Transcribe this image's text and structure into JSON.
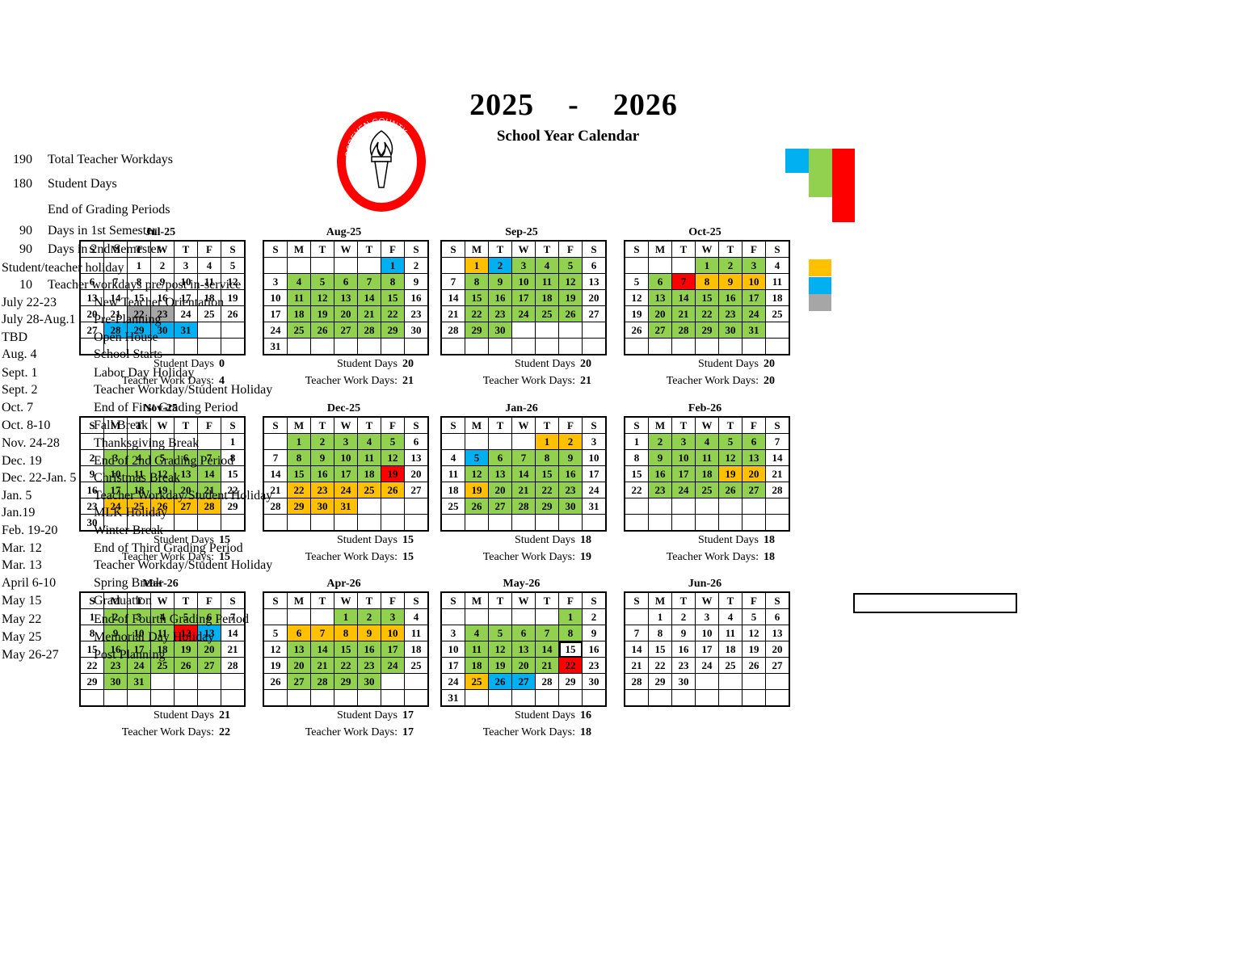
{
  "header": {
    "year_left": "2025",
    "year_dash": "-",
    "year_right": "2026",
    "subtitle": "School Year Calendar"
  },
  "logo": {
    "text_top": "SCREVEN COUNTY",
    "text_bottom": "SCHOOL SYSTEM",
    "ring_color": "#ff0000"
  },
  "colors": {
    "green": "#92d050",
    "blue": "#00b0f0",
    "orange": "#ffc000",
    "red": "#ff0000",
    "gray": "#a6a6a6"
  },
  "day_headers": [
    "S",
    "M",
    "T",
    "W",
    "T",
    "F",
    "S"
  ],
  "stat_labels": {
    "student": "Student Days",
    "teacher": "Teacher Work Days:"
  },
  "months": [
    {
      "title": "Jul-25",
      "start": 2,
      "days": 31,
      "student_days": "0",
      "teacher_days": "4",
      "marks": {
        "22": "gray",
        "23": "gray",
        "28": "blue",
        "29": "blue",
        "30": "blue",
        "31": "blue"
      }
    },
    {
      "title": "Aug-25",
      "start": 5,
      "days": 31,
      "student_days": "20",
      "teacher_days": "21",
      "marks": {
        "1": "blue",
        "4": "green",
        "5": "green",
        "6": "green",
        "7": "green",
        "8": "green",
        "11": "green",
        "12": "green",
        "13": "green",
        "14": "green",
        "15": "green",
        "18": "green",
        "19": "green",
        "20": "green",
        "21": "green",
        "22": "green",
        "25": "green",
        "26": "green",
        "27": "green",
        "28": "green",
        "29": "green"
      }
    },
    {
      "title": "Sep-25",
      "start": 1,
      "days": 30,
      "student_days": "20",
      "teacher_days": "21",
      "marks": {
        "1": "orange",
        "2": "blue",
        "3": "green",
        "4": "green",
        "5": "green",
        "8": "green",
        "9": "green",
        "10": "green",
        "11": "green",
        "12": "green",
        "15": "green",
        "16": "green",
        "17": "green",
        "18": "green",
        "19": "green",
        "22": "green",
        "23": "green",
        "24": "green",
        "25": "green",
        "26": "green",
        "29": "green",
        "30": "green"
      }
    },
    {
      "title": "Oct-25",
      "start": 3,
      "days": 31,
      "student_days": "20",
      "teacher_days": "20",
      "marks": {
        "1": "green",
        "2": "green",
        "3": "green",
        "6": "green",
        "7": "red",
        "8": "orange",
        "9": "orange",
        "10": "orange",
        "13": "green",
        "14": "green",
        "15": "green",
        "16": "green",
        "17": "green",
        "20": "green",
        "21": "green",
        "22": "green",
        "23": "green",
        "24": "green",
        "27": "green",
        "28": "green",
        "29": "green",
        "30": "green",
        "31": "green"
      }
    },
    {
      "title": "Nov-25",
      "start": 6,
      "days": 30,
      "student_days": "15",
      "teacher_days": "15",
      "marks": {
        "3": "green",
        "4": "green",
        "5": "green",
        "6": "green",
        "7": "green",
        "10": "green",
        "11": "green",
        "12": "green",
        "13": "green",
        "14": "green",
        "17": "green",
        "18": "green",
        "19": "green",
        "20": "green",
        "21": "green",
        "24": "orange",
        "25": "orange",
        "26": "orange",
        "27": "orange",
        "28": "orange"
      }
    },
    {
      "title": "Dec-25",
      "start": 1,
      "days": 31,
      "student_days": "15",
      "teacher_days": "15",
      "marks": {
        "1": "green",
        "2": "green",
        "3": "green",
        "4": "green",
        "5": "green",
        "8": "green",
        "9": "green",
        "10": "green",
        "11": "green",
        "12": "green",
        "15": "green",
        "16": "green",
        "17": "green",
        "18": "green",
        "19": "red",
        "22": "orange",
        "23": "orange",
        "24": "orange",
        "25": "orange",
        "26": "orange",
        "29": "orange",
        "30": "orange",
        "31": "orange"
      }
    },
    {
      "title": "Jan-26",
      "start": 4,
      "days": 31,
      "student_days": "18",
      "teacher_days": "19",
      "marks": {
        "1": "orange",
        "2": "orange",
        "5": "blue",
        "6": "green",
        "7": "green",
        "8": "green",
        "9": "green",
        "12": "green",
        "13": "green",
        "14": "green",
        "15": "green",
        "16": "green",
        "19": "orange",
        "20": "green",
        "21": "green",
        "22": "green",
        "23": "green",
        "26": "green",
        "27": "green",
        "28": "green",
        "29": "green",
        "30": "green"
      }
    },
    {
      "title": "Feb-26",
      "start": 0,
      "days": 28,
      "student_days": "18",
      "teacher_days": "18",
      "marks": {
        "2": "green",
        "3": "green",
        "4": "green",
        "5": "green",
        "6": "green",
        "9": "green",
        "10": "green",
        "11": "green",
        "12": "green",
        "13": "green",
        "16": "green",
        "17": "green",
        "18": "green",
        "19": "orange",
        "20": "orange",
        "23": "green",
        "24": "green",
        "25": "green",
        "26": "green",
        "27": "green"
      }
    },
    {
      "title": "Mar-26",
      "start": 0,
      "days": 31,
      "student_days": "21",
      "teacher_days": "22",
      "marks": {
        "2": "green",
        "3": "green",
        "4": "green",
        "5": "green",
        "6": "green",
        "9": "green",
        "10": "green",
        "11": "green",
        "12": "red",
        "13": "blue",
        "16": "green",
        "17": "green",
        "18": "green",
        "19": "green",
        "20": "green",
        "23": "green",
        "24": "green",
        "25": "green",
        "26": "green",
        "27": "green",
        "30": "green",
        "31": "green"
      }
    },
    {
      "title": "Apr-26",
      "start": 3,
      "days": 30,
      "student_days": "17",
      "teacher_days": "17",
      "marks": {
        "1": "green",
        "2": "green",
        "3": "green",
        "6": "orange",
        "7": "orange",
        "8": "orange",
        "9": "orange",
        "10": "orange",
        "13": "green",
        "14": "green",
        "15": "green",
        "16": "green",
        "17": "green",
        "20": "green",
        "21": "green",
        "22": "green",
        "23": "green",
        "24": "green",
        "27": "green",
        "28": "green",
        "29": "green",
        "30": "green"
      }
    },
    {
      "title": "May-26",
      "start": 5,
      "days": 31,
      "student_days": "16",
      "teacher_days": "18",
      "marks": {
        "1": "green",
        "4": "green",
        "5": "green",
        "6": "green",
        "7": "green",
        "8": "green",
        "11": "green",
        "12": "green",
        "13": "green",
        "14": "green",
        "15": "boxed",
        "18": "green",
        "19": "green",
        "20": "green",
        "21": "green",
        "22": "red",
        "25": "orange",
        "26": "blue",
        "27": "blue"
      }
    },
    {
      "title": "Jun-26",
      "start": 1,
      "days": 30,
      "student_days": "",
      "teacher_days": "",
      "marks": {}
    }
  ],
  "legend_stats": [
    {
      "num": "190",
      "label": "Total Teacher Workdays"
    },
    {
      "num": "180",
      "label": "Student Days"
    },
    {
      "num": "",
      "label": "End of Grading Periods"
    },
    {
      "num": "90",
      "label": "Days in 1st Semester"
    },
    {
      "num": "90",
      "label": "Days in 2nd Semester"
    }
  ],
  "legend_swatches": [
    {
      "label": "Student/teacher holiday",
      "color": "orange"
    },
    {
      "num": "10",
      "label": "Teacher workdays pre/post in-service",
      "color": "blue"
    }
  ],
  "events": [
    {
      "date": "July 22-23",
      "desc": "New Teacher Orientation"
    },
    {
      "date": "July 28-Aug.1",
      "desc": "Pre-Planning"
    },
    {
      "date": "TBD",
      "desc": "Open House"
    },
    {
      "date": "Aug. 4",
      "desc": "School Starts"
    },
    {
      "date": "Sept. 1",
      "desc": "Labor Day Holiday"
    },
    {
      "date": "Sept. 2",
      "desc": "Teacher Workday/Student Holiday"
    },
    {
      "date": "Oct. 7",
      "desc": "End of First Grading Period"
    },
    {
      "date": "Oct. 8-10",
      "desc": "Fall Break"
    },
    {
      "date": "Nov. 24-28",
      "desc": "Thanksgiving Break"
    },
    {
      "date": "Dec. 19",
      "desc": "End of 2nd Grading Period"
    },
    {
      "date": "Dec. 22-Jan. 5",
      "desc": "Christmas Break"
    },
    {
      "date": "Jan. 5",
      "desc": "Teacher Workday/Student Holiday"
    },
    {
      "date": "Jan.19",
      "desc": "MLK Holiday"
    },
    {
      "date": "Feb. 19-20",
      "desc": "Winter Break"
    },
    {
      "date": "Mar. 12",
      "desc": "End of Third Grading Period"
    },
    {
      "date": "Mar. 13",
      "desc": "Teacher Workday/Student Holiday"
    },
    {
      "date": "April 6-10",
      "desc": "Spring Break"
    },
    {
      "date": "May 15",
      "desc": "Graduation"
    },
    {
      "date": "May 22",
      "desc": "End of Fourth Grading Period"
    },
    {
      "date": "May 25",
      "desc": "Memorial Day Holiday"
    },
    {
      "date": "May 26-27",
      "desc": "Post Planning"
    }
  ]
}
